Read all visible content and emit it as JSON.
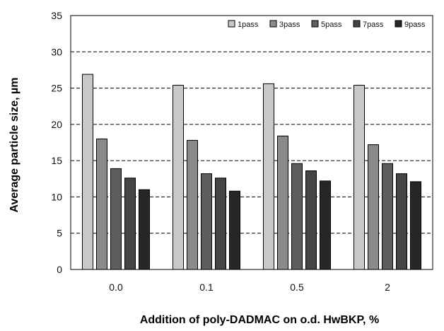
{
  "chart_data": {
    "type": "bar",
    "title": "",
    "xlabel": "Addition of poly-DADMAC on o.d. HwBKP, %",
    "ylabel": "Average particle size, µm",
    "ylim": [
      0,
      35
    ],
    "yticks": [
      "0",
      "5",
      "10",
      "15",
      "20",
      "25",
      "30",
      "35"
    ],
    "categories": [
      "0.0",
      "0.1",
      "0.5",
      "2"
    ],
    "grid": "dashed horizontal",
    "legend_position": "top-right",
    "series": [
      {
        "name": "1pass",
        "color": "#c8c8c8",
        "values": [
          26.9,
          25.4,
          25.6,
          25.4
        ]
      },
      {
        "name": "3pass",
        "color": "#8a8a8a",
        "values": [
          18.0,
          17.8,
          18.4,
          17.2
        ]
      },
      {
        "name": "5pass",
        "color": "#5e5e5e",
        "values": [
          13.9,
          13.2,
          14.6,
          14.6
        ]
      },
      {
        "name": "7pass",
        "color": "#444444",
        "values": [
          12.6,
          12.6,
          13.6,
          13.2
        ]
      },
      {
        "name": "9pass",
        "color": "#262626",
        "values": [
          11.0,
          10.8,
          12.2,
          12.1
        ]
      }
    ]
  }
}
